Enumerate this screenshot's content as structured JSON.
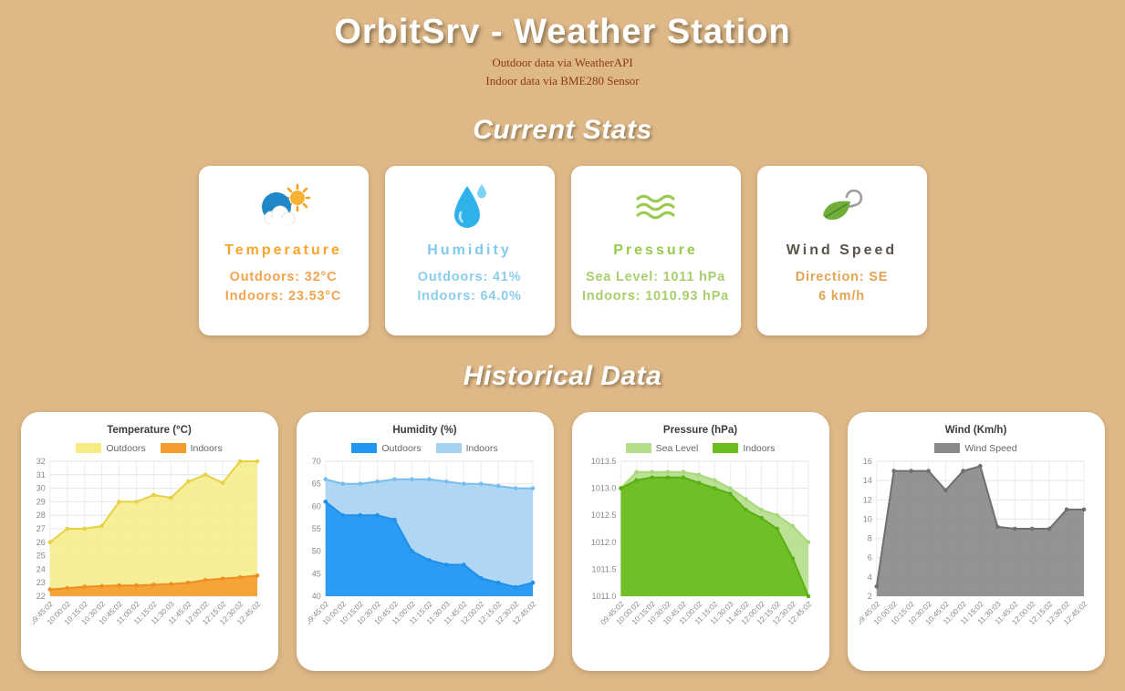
{
  "header": {
    "title": "OrbitSrv - Weather Station",
    "subtitle1": "Outdoor data via WeatherAPI",
    "subtitle2": "Indoor data via BME280 Sensor"
  },
  "sections": {
    "current": "Current Stats",
    "historical": "Historical Data"
  },
  "stats_cards": [
    {
      "id": "temperature",
      "icon": "sun-behind-cloud-icon",
      "title": "Temperature",
      "title_color": "#f9a42c",
      "body_color": "#f2a44e",
      "line1": "Outdoors: 32°C",
      "line2": "Indoors: 23.53°C"
    },
    {
      "id": "humidity",
      "icon": "water-drop-icon",
      "title": "Humidity",
      "title_color": "#7fcbee",
      "body_color": "#8ccdec",
      "line1": "Outdoors: 41%",
      "line2": "Indoors: 64.0%"
    },
    {
      "id": "pressure",
      "icon": "pressure-waves-icon",
      "title": "Pressure",
      "title_color": "#97cb4f",
      "body_color": "#a7cf6c",
      "line1": "Sea Level: 1011 hPa",
      "line2": "Indoors: 1010.93 hPa"
    },
    {
      "id": "wind",
      "icon": "leaf-in-wind-icon",
      "title": "Wind Speed",
      "title_color": "#5b544b",
      "body_color": "#e3a355",
      "line1": "Direction: SE",
      "line2": "6 km/h"
    }
  ],
  "chart_data": [
    {
      "type": "area",
      "title": "Temperature (°C)",
      "categories": [
        "09:45:02",
        "10:00:02",
        "10:15:02",
        "10:30:02",
        "10:45:02",
        "11:00:02",
        "11:15:02",
        "11:30:03",
        "11:45:02",
        "12:00:02",
        "12:15:02",
        "12:30:02",
        "12:45:02"
      ],
      "series": [
        {
          "name": "Outdoors",
          "line_color": "#e6d145",
          "fill_color": "#f6ec85",
          "fill_opacity": 0.85,
          "values": [
            26,
            27,
            27,
            27.2,
            29,
            29,
            29.5,
            29.3,
            30.5,
            31,
            30.4,
            32,
            32
          ]
        },
        {
          "name": "Indoors",
          "line_color": "#ee8f20",
          "fill_color": "#f49b2e",
          "fill_opacity": 0.9,
          "values": [
            22.5,
            22.6,
            22.7,
            22.75,
            22.8,
            22.8,
            22.85,
            22.9,
            23.0,
            23.2,
            23.3,
            23.4,
            23.53
          ]
        }
      ],
      "draw_order": [
        0,
        1
      ],
      "ylim": [
        22,
        32
      ],
      "y_step": 1,
      "y_decimals": 0,
      "grid": true,
      "legend_position": "top"
    },
    {
      "type": "area",
      "title": "Humidity (%)",
      "categories": [
        "09:45:02",
        "10:00:02",
        "10:15:02",
        "10:30:02",
        "10:45:02",
        "11:00:02",
        "11:15:02",
        "11:30:03",
        "11:45:02",
        "12:00:02",
        "12:15:02",
        "12:30:02",
        "12:45:02"
      ],
      "series": [
        {
          "name": "Outdoors",
          "line_color": "#1f8fe8",
          "fill_color": "#2196f3",
          "fill_opacity": 0.92,
          "values": [
            61,
            58,
            58,
            58,
            57,
            50,
            48,
            47,
            47,
            44,
            43,
            42,
            43
          ]
        },
        {
          "name": "Indoors",
          "line_color": "#79bdec",
          "fill_color": "#a6d2f2",
          "fill_opacity": 0.9,
          "values": [
            66,
            65,
            65,
            65.5,
            66,
            66,
            66,
            65.5,
            65,
            65,
            64.5,
            64,
            64
          ]
        }
      ],
      "draw_order": [
        1,
        0
      ],
      "ylim": [
        40,
        70
      ],
      "y_step": 5,
      "y_decimals": 0,
      "grid": true,
      "legend_position": "top"
    },
    {
      "type": "area",
      "title": "Pressure (hPa)",
      "categories": [
        "09:45:02",
        "10:00:02",
        "10:15:02",
        "10:30:02",
        "10:45:02",
        "11:00:02",
        "11:15:02",
        "11:30:03",
        "11:45:02",
        "12:00:02",
        "12:15:02",
        "12:30:02",
        "12:45:02"
      ],
      "series": [
        {
          "name": "Sea Level",
          "line_color": "#a8d878",
          "fill_color": "#b5dd8a",
          "fill_opacity": 0.9,
          "values": [
            1013.0,
            1013.3,
            1013.3,
            1013.3,
            1013.3,
            1013.25,
            1013.15,
            1013.0,
            1012.8,
            1012.6,
            1012.5,
            1012.3,
            1012.0
          ]
        },
        {
          "name": "Indoors",
          "line_color": "#59b014",
          "fill_color": "#6abc1e",
          "fill_opacity": 0.92,
          "values": [
            1013.0,
            1013.15,
            1013.2,
            1013.2,
            1013.2,
            1013.1,
            1013.0,
            1012.9,
            1012.6,
            1012.45,
            1012.25,
            1011.7,
            1011.0
          ]
        }
      ],
      "draw_order": [
        0,
        1
      ],
      "ylim": [
        1011.0,
        1013.5
      ],
      "y_step": 0.5,
      "y_decimals": 1,
      "grid": true,
      "legend_position": "top"
    },
    {
      "type": "area",
      "title": "Wind (Km/h)",
      "categories": [
        "09:45:02",
        "10:00:02",
        "10:15:02",
        "10:30:02",
        "10:45:02",
        "11:00:02",
        "11:15:02",
        "11:30:03",
        "11:45:02",
        "12:00:02",
        "12:15:02",
        "12:30:02",
        "12:45:02"
      ],
      "series": [
        {
          "name": "Wind Speed",
          "line_color": "#6f6f6f",
          "fill_color": "#8a8a8a",
          "fill_opacity": 0.92,
          "values": [
            3,
            15,
            15,
            15,
            13,
            15,
            15.5,
            9.2,
            9,
            9,
            9,
            11,
            11
          ]
        }
      ],
      "draw_order": [
        0
      ],
      "ylim": [
        2,
        16
      ],
      "y_step": 2,
      "y_decimals": 0,
      "grid": true,
      "legend_position": "top"
    }
  ]
}
